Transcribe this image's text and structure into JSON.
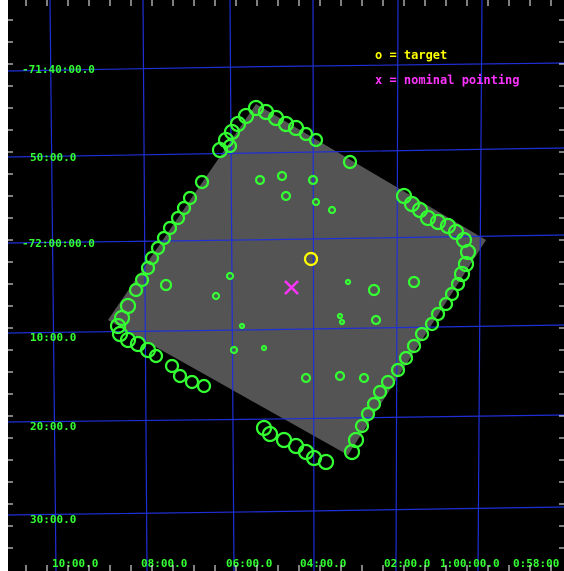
{
  "colors": {
    "background": "#000000",
    "grid": "#1f2fd6",
    "tick_labels": "#33ff33",
    "sources": "#33ff33",
    "target": "#ffff00",
    "pointing": "#ff33ff",
    "field": "#5a5a5a"
  },
  "legend": {
    "target_label": "o = target",
    "pointing_label": "x = nominal pointing"
  },
  "dec_labels": [
    "-71:40:00.0",
    "50:00.0",
    "-72:00:00.0",
    "10:00.0",
    "20:00.0",
    "30:00.0"
  ],
  "ra_labels": [
    "10:00.0",
    "08:00.0",
    "06:00.0",
    "04:00.0",
    "02:00.0",
    "1:00:00.0",
    "0:58:00"
  ]
}
